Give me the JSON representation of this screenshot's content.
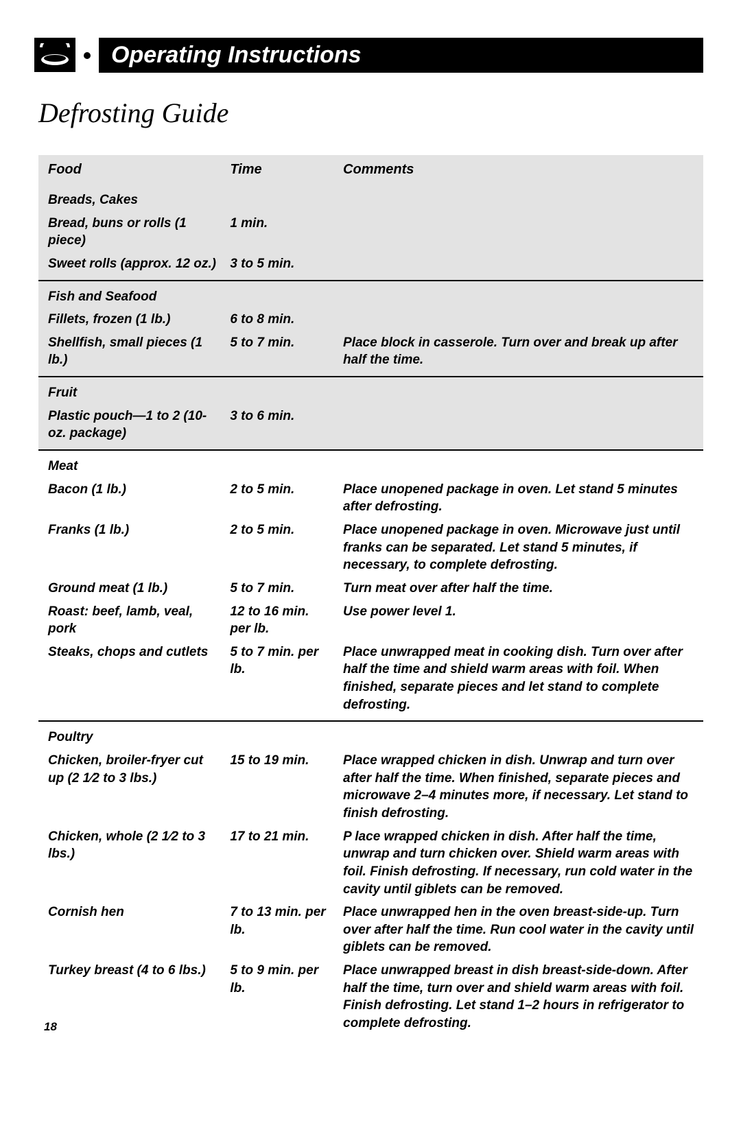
{
  "header": {
    "title": "Operating Instructions"
  },
  "subtitle": "Defrosting Guide",
  "columns": {
    "food": "Food",
    "time": "Time",
    "comments": "Comments"
  },
  "sections": [
    {
      "category": "Breads, Cakes",
      "shaded": true,
      "rows": [
        {
          "food": "Bread, buns or rolls (1 piece)",
          "time": "1 min.",
          "comments": ""
        },
        {
          "food": "Sweet rolls (approx. 12 oz.)",
          "time": "3 to 5 min.",
          "comments": ""
        }
      ]
    },
    {
      "category": "Fish and Seafood",
      "shaded": true,
      "rows": [
        {
          "food": "Fillets, frozen (1 lb.)",
          "time": "6 to 8 min.",
          "comments": ""
        },
        {
          "food": "Shellfish, small pieces (1 lb.)",
          "time": "5 to 7 min.",
          "comments": "Place block in casserole. Turn over and break up after half the time."
        }
      ]
    },
    {
      "category": "Fruit",
      "shaded": true,
      "rows": [
        {
          "food": "Plastic pouch—1 to 2 (10-oz. package)",
          "time": "3 to 6 min.",
          "comments": ""
        }
      ]
    },
    {
      "category": "Meat",
      "shaded": false,
      "rows": [
        {
          "food": "Bacon (1 lb.)",
          "time": "2 to 5 min.",
          "comments": "Place unopened package in oven. Let stand 5 minutes after defrosting."
        },
        {
          "food": "Franks (1 lb.)",
          "time": "2 to 5 min.",
          "comments": "Place unopened package in oven. Microwave just until franks can be separated. Let stand 5 minutes, if necessary, to complete defrosting."
        },
        {
          "food": "Ground meat (1 lb.)",
          "time": "5 to 7 min.",
          "comments": "Turn meat over after half the time."
        },
        {
          "food": "Roast: beef, lamb, veal, pork",
          "time": "12 to 16 min. per lb.",
          "comments": "Use    power level 1."
        },
        {
          "food": "Steaks, chops and cutlets",
          "time": "5 to 7 min. per lb.",
          "comments": "Place unwrapped meat in cooking dish. Turn over after half the time and shield warm areas with foil. When finished, separate pieces and let stand to complete defrosting."
        }
      ]
    },
    {
      "category": "Poultry",
      "shaded": false,
      "rows": [
        {
          "food": "Chicken, broiler-fryer cut up (2 1⁄2 to 3 lbs.)",
          "time": "15 to 19 min.",
          "comments": "Place wrapped chicken in dish. Unwrap and turn over after half the time. When finished, separate pieces and microwave 2–4 minutes more, if necessary. Let stand to finish defrosting."
        },
        {
          "food": "Chicken, whole (2 1⁄2 to 3 lbs.)",
          "time": "17 to 21 min.",
          "comments": "P   lace wrapped chicken in dish. After half the time, unwrap and turn chicken over. Shield warm areas with foil. Finish defrosting. If necessary, run cold water in the cavity until giblets can be removed."
        },
        {
          "food": "Cornish hen",
          "time": "7 to 13 min. per lb.",
          "comments": "Place unwrapped hen in the oven breast-side-up. Turn over after half the time. Run cool water in the cavity until giblets can be removed."
        },
        {
          "food": "Turkey breast (4 to 6 lbs.)",
          "time": "5 to 9 min. per lb.",
          "comments": "Place unwrapped breast in dish breast-side-down. After half the time, turn over and shield warm areas with foil. Finish defrosting. Let stand 1–2 hours in refrigerator to complete defrosting."
        }
      ]
    }
  ],
  "page_number": "18",
  "colors": {
    "background": "#ffffff",
    "header_bg": "#000000",
    "header_text": "#ffffff",
    "shade": "#e3e3e3",
    "text": "#000000"
  }
}
